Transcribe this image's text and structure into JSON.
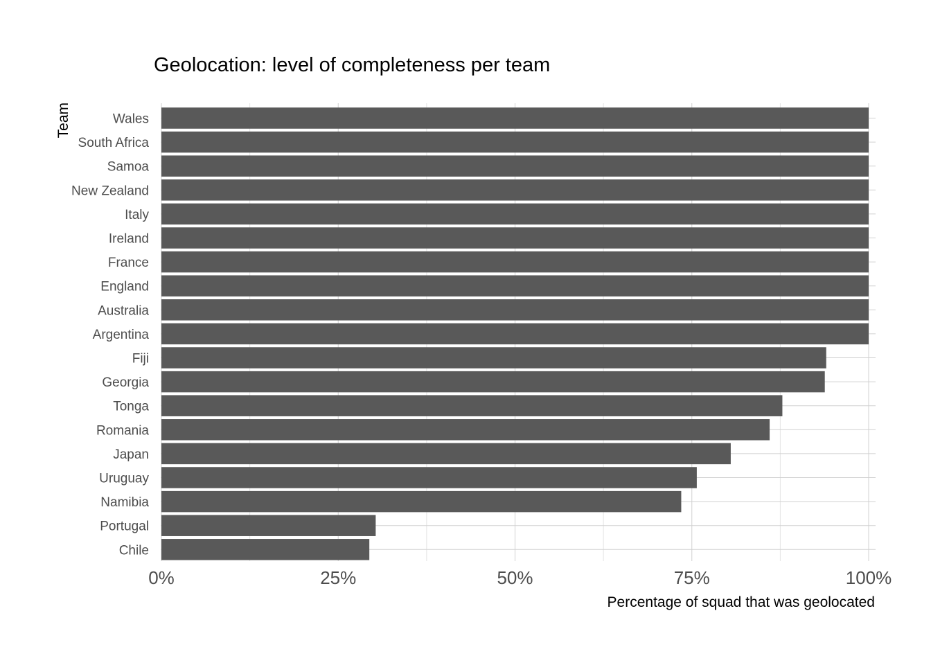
{
  "chart_data": {
    "type": "bar",
    "orientation": "horizontal",
    "title": "Geolocation: level of completeness per team",
    "xlabel": "Percentage of squad that was geolocated",
    "ylabel": "Team",
    "xlim": [
      0,
      1
    ],
    "x_ticks": [
      0,
      0.25,
      0.5,
      0.75,
      1
    ],
    "x_tick_labels": [
      "0%",
      "25%",
      "50%",
      "75%",
      "100%"
    ],
    "grid": true,
    "bar_color": "#595959",
    "categories": [
      "Wales",
      "South Africa",
      "Samoa",
      "New Zealand",
      "Italy",
      "Ireland",
      "France",
      "England",
      "Australia",
      "Argentina",
      "Fiji",
      "Georgia",
      "Tonga",
      "Romania",
      "Japan",
      "Uruguay",
      "Namibia",
      "Portugal",
      "Chile"
    ],
    "values": [
      1.0,
      1.0,
      1.0,
      1.0,
      1.0,
      1.0,
      1.0,
      1.0,
      1.0,
      1.0,
      0.94,
      0.938,
      0.878,
      0.86,
      0.805,
      0.757,
      0.735,
      0.303,
      0.294
    ]
  }
}
